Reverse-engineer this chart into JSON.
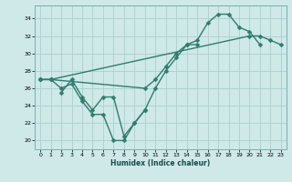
{
  "xlabel": "Humidex (Indice chaleur)",
  "xlim": [
    -0.5,
    23.5
  ],
  "ylim": [
    19,
    35.5
  ],
  "xticks": [
    0,
    1,
    2,
    3,
    4,
    5,
    6,
    7,
    8,
    9,
    10,
    11,
    12,
    13,
    14,
    15,
    16,
    17,
    18,
    19,
    20,
    21,
    22,
    23
  ],
  "yticks": [
    20,
    22,
    24,
    26,
    28,
    30,
    32,
    34
  ],
  "background_color": "#cfe8e8",
  "grid_color": "#aacfcf",
  "line_color": "#2e7d6e",
  "line_width": 1.0,
  "marker": "D",
  "marker_size": 2.5,
  "curves": [
    {
      "x": [
        0,
        1,
        2,
        3,
        4,
        5,
        6,
        7,
        8,
        9,
        10,
        11,
        12,
        13,
        14,
        15
      ],
      "y": [
        27,
        27,
        26,
        26.5,
        24.5,
        23,
        23,
        20,
        20,
        22,
        23.5,
        26,
        28,
        29.5,
        31,
        31
      ]
    },
    {
      "x": [
        0,
        1,
        10,
        11,
        12,
        13,
        14,
        15,
        16,
        17,
        18,
        19,
        20,
        21
      ],
      "y": [
        27,
        27,
        26,
        27,
        28.5,
        30,
        31,
        31.5,
        33.5,
        34.5,
        34.5,
        33,
        32.5,
        31
      ]
    },
    {
      "x": [
        0,
        1,
        20,
        21,
        22,
        23
      ],
      "y": [
        27,
        27,
        32,
        32,
        31.5,
        31
      ]
    },
    {
      "x": [
        2,
        3,
        4,
        5,
        6,
        7,
        8,
        9,
        10
      ],
      "y": [
        25.5,
        27,
        25,
        23.5,
        25,
        25,
        20.5,
        22,
        23.5
      ]
    }
  ]
}
